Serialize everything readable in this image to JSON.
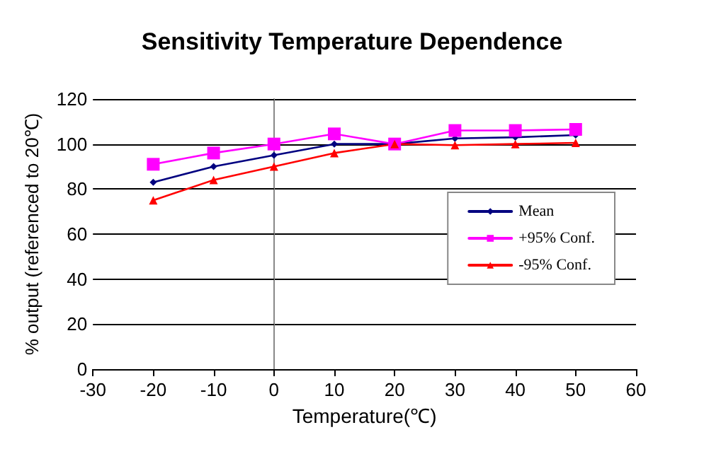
{
  "chart_data": {
    "type": "line",
    "title": "Sensitivity Temperature Dependence",
    "xlabel": "Temperature(℃)",
    "ylabel": "% output (referenced to 20℃)",
    "x": [
      -20,
      -10,
      0,
      10,
      20,
      30,
      40,
      50
    ],
    "series": [
      {
        "name": "Mean",
        "color": "#000080",
        "marker": "diamond",
        "values": [
          83,
          90,
          95,
          100,
          100,
          102.5,
          103,
          104
        ]
      },
      {
        "name": "+95% Conf.",
        "color": "#ff00ff",
        "marker": "square",
        "values": [
          91,
          96,
          100,
          104.5,
          100,
          106,
          106,
          106.5
        ]
      },
      {
        "name": "-95% Conf.",
        "color": "#ff0000",
        "marker": "triangle",
        "values": [
          75,
          84,
          90,
          96,
          100,
          99.5,
          100,
          100.5
        ]
      }
    ],
    "xlim": [
      -30,
      60
    ],
    "xticks": [
      -30,
      -20,
      -10,
      0,
      10,
      20,
      30,
      40,
      50,
      60
    ],
    "ylim": [
      0,
      120
    ],
    "yticks": [
      0,
      20,
      40,
      60,
      80,
      100,
      120
    ],
    "grid": "y",
    "legend": "right",
    "line_style": "solid"
  }
}
